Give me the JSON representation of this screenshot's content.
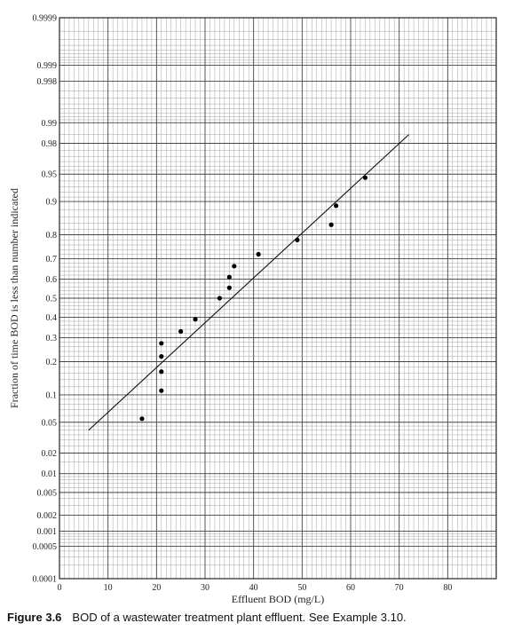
{
  "chart_data": {
    "type": "scatter",
    "y_scale": "probability",
    "ylabel": "Fraction of time BOD is less than number indicated",
    "xlabel": "Effluent BOD (mg/L)",
    "xlim": [
      0,
      90
    ],
    "ylim": [
      0.0001,
      0.9999
    ],
    "x_ticks": [
      0,
      10,
      20,
      30,
      40,
      50,
      60,
      70,
      80
    ],
    "y_ticks": [
      {
        "value": 0.0001,
        "label": "0.0001"
      },
      {
        "value": 0.0005,
        "label": "0.0005"
      },
      {
        "value": 0.001,
        "label": "0.001"
      },
      {
        "value": 0.002,
        "label": "0.002"
      },
      {
        "value": 0.005,
        "label": "0.005"
      },
      {
        "value": 0.01,
        "label": "0.01"
      },
      {
        "value": 0.02,
        "label": "0.02"
      },
      {
        "value": 0.05,
        "label": "0.05"
      },
      {
        "value": 0.1,
        "label": "0.1"
      },
      {
        "value": 0.2,
        "label": "0.2"
      },
      {
        "value": 0.3,
        "label": "0.3"
      },
      {
        "value": 0.4,
        "label": "0.4"
      },
      {
        "value": 0.5,
        "label": "0.5"
      },
      {
        "value": 0.6,
        "label": "0.6"
      },
      {
        "value": 0.7,
        "label": "0.7"
      },
      {
        "value": 0.8,
        "label": "0.8"
      },
      {
        "value": 0.9,
        "label": "0.9"
      },
      {
        "value": 0.95,
        "label": "0.95"
      },
      {
        "value": 0.98,
        "label": "0.98"
      },
      {
        "value": 0.99,
        "label": "0.99"
      },
      {
        "value": 0.998,
        "label": "0.998"
      },
      {
        "value": 0.999,
        "label": "0.999"
      },
      {
        "value": 0.9999,
        "label": "0.9999"
      }
    ],
    "grid": true,
    "points": [
      {
        "x": 17,
        "y": 0.055
      },
      {
        "x": 21,
        "y": 0.11
      },
      {
        "x": 21,
        "y": 0.165
      },
      {
        "x": 21,
        "y": 0.22
      },
      {
        "x": 21,
        "y": 0.275
      },
      {
        "x": 25,
        "y": 0.33
      },
      {
        "x": 28,
        "y": 0.39
      },
      {
        "x": 33,
        "y": 0.5
      },
      {
        "x": 35,
        "y": 0.555
      },
      {
        "x": 35,
        "y": 0.61
      },
      {
        "x": 36,
        "y": 0.665
      },
      {
        "x": 41,
        "y": 0.72
      },
      {
        "x": 49,
        "y": 0.78
      },
      {
        "x": 56,
        "y": 0.835
      },
      {
        "x": 57,
        "y": 0.89
      },
      {
        "x": 63,
        "y": 0.945
      }
    ],
    "fit_line": {
      "x": [
        6,
        72
      ],
      "y": [
        0.04,
        0.985
      ]
    }
  },
  "caption": {
    "figure_label": "Figure 3.6",
    "text": "BOD of a wastewater treatment plant effluent. See Example 3.10."
  }
}
